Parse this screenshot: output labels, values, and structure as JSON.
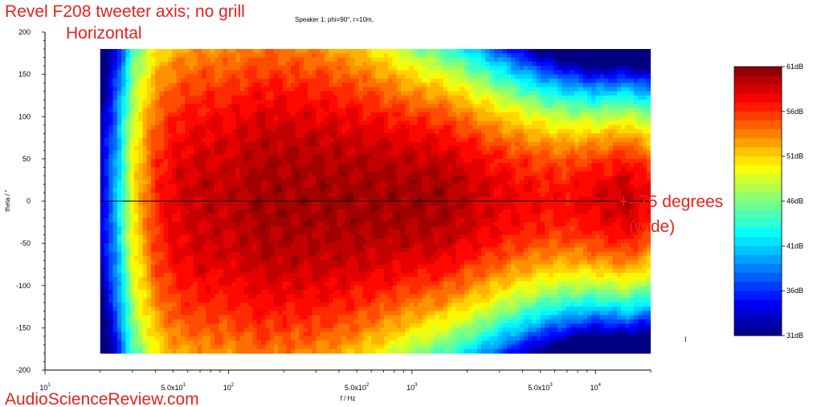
{
  "annotations": {
    "title_line1": "Revel F208 tweeter axis; no grill",
    "title_line2": "Horizontal",
    "callout_line1": "+- 75 degrees",
    "callout_line2": "(wide)",
    "watermark": "AudioScienceReview.com",
    "subtitle": "Speaker 1: phi=90°, r=10m,",
    "stray_mark": "I"
  },
  "chart_data": {
    "type": "heatmap",
    "title": "Speaker 1: phi=90°, r=10m,",
    "xlabel": "f / Hz",
    "ylabel": "theta / °",
    "x_scale": "log",
    "xlim": [
      10,
      20000
    ],
    "ylim": [
      -200,
      200
    ],
    "data_x_range": [
      20,
      20000
    ],
    "data_y_range": [
      -180,
      180
    ],
    "x_major_ticks": [
      {
        "value": 10,
        "base": "10",
        "exp": "1"
      },
      {
        "value": 50,
        "base": "5.0x10",
        "exp": "1"
      },
      {
        "value": 100,
        "base": "10",
        "exp": "2"
      },
      {
        "value": 500,
        "base": "5.0x10",
        "exp": "2"
      },
      {
        "value": 1000,
        "base": "10",
        "exp": "3"
      },
      {
        "value": 5000,
        "base": "5.0x10",
        "exp": "3"
      },
      {
        "value": 10000,
        "base": "10",
        "exp": "4"
      }
    ],
    "y_ticks": [
      200,
      150,
      100,
      50,
      0,
      -50,
      -100,
      -150,
      -200
    ],
    "colorbar": {
      "min_db": 31,
      "max_db": 61,
      "labels": [
        "61dB",
        "56dB",
        "51dB",
        "46dB",
        "41dB",
        "36dB",
        "31dB"
      ],
      "levels": 30
    },
    "reference_line_theta": 0,
    "frequency_samples_hz": [
      20,
      25,
      30,
      40,
      50,
      70,
      100,
      150,
      200,
      300,
      500,
      700,
      1000,
      1500,
      2000,
      3000,
      5000,
      7000,
      10000,
      15000,
      20000
    ],
    "on_axis_level_db": [
      33,
      41,
      50,
      56,
      58,
      59,
      59,
      60,
      60,
      60,
      60,
      60,
      60,
      60,
      59,
      58,
      57,
      57,
      58,
      59,
      57
    ],
    "beamwidth_minus6db_deg": [
      180,
      180,
      180,
      180,
      180,
      180,
      180,
      180,
      175,
      170,
      150,
      135,
      120,
      110,
      105,
      95,
      85,
      80,
      75,
      75,
      75
    ]
  }
}
